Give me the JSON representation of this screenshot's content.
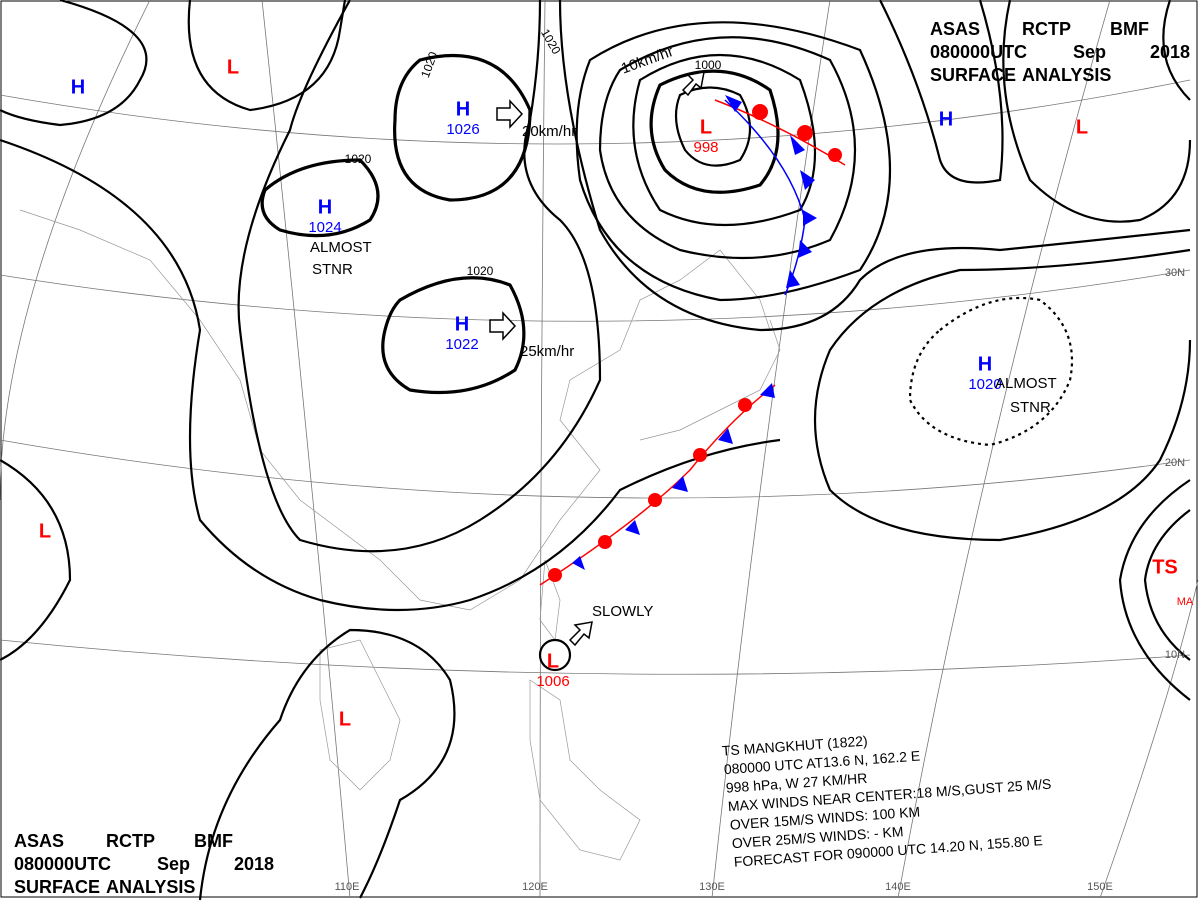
{
  "header_top": {
    "lines": [
      [
        "ASAS",
        "RCTP",
        "BMF"
      ],
      [
        "080000UTC",
        "Sep",
        "2018"
      ],
      [
        "SURFACE",
        "ANALYSIS"
      ]
    ]
  },
  "header_bottom": {
    "lines": [
      [
        "ASAS",
        "RCTP",
        "BMF"
      ],
      [
        "080000UTC",
        "Sep",
        "2018"
      ],
      [
        "SURFACE",
        "ANALYSIS"
      ]
    ]
  },
  "pressure_centers": [
    {
      "symbol": "H"
    },
    {
      "symbol": "L"
    },
    {
      "symbol": "H",
      "value": "1026"
    },
    {
      "symbol": "H",
      "value": "1024"
    },
    {
      "symbol": "H",
      "value": "1022"
    },
    {
      "symbol": "L",
      "value": "998"
    },
    {
      "symbol": "H"
    },
    {
      "symbol": "L"
    },
    {
      "symbol": "H",
      "value": "1020"
    },
    {
      "symbol": "L"
    },
    {
      "symbol": "L"
    },
    {
      "symbol": "L",
      "value": "1006"
    },
    {
      "symbol": "TS",
      "value": "MA"
    }
  ],
  "isobar_labels": [
    "1020",
    "1020",
    "1020",
    "1020",
    "1000"
  ],
  "annotations": [
    "20km/hr",
    "25km/hr",
    "10km/hr",
    "ALMOST",
    "STNR",
    "ALMOST",
    "STNR",
    "SLOWLY"
  ],
  "typhoon_box": {
    "lines": [
      "TS  MANGKHUT  (1822)",
      "080000 UTC  AT13.6 N, 162.2 E",
      "998 hPa, W  27 KM/HR",
      "MAX WINDS NEAR CENTER:18 M/S,GUST 25 M/S",
      "OVER 15M/S WINDS: 100 KM",
      "OVER 25M/S WINDS: - KM",
      "FORECAST FOR 090000 UTC 14.20 N, 155.80 E"
    ]
  },
  "grid_labels": {
    "longitudes": [
      "110E",
      "120E",
      "130E",
      "140E",
      "150E"
    ],
    "latitudes": [
      "30N",
      "20N",
      "10N"
    ]
  }
}
